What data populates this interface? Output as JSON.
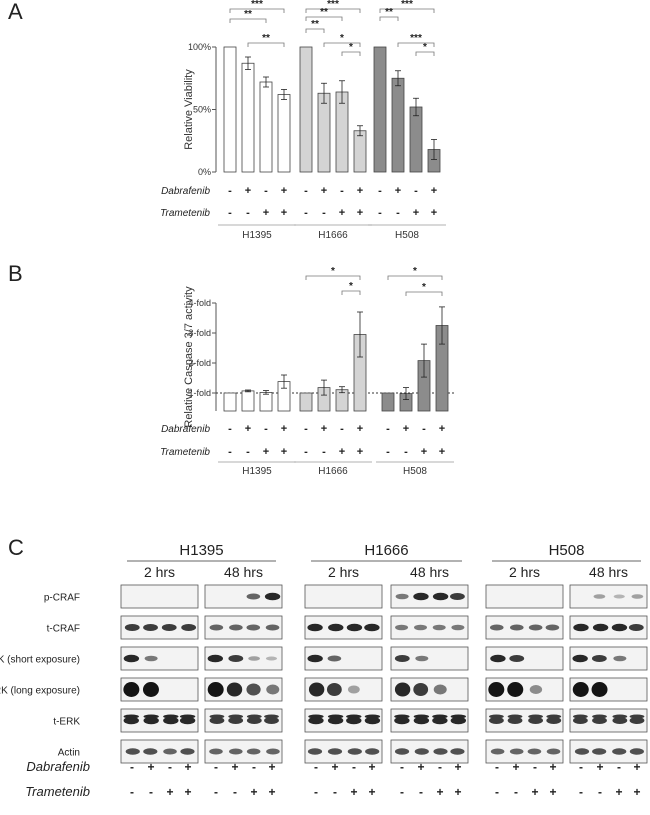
{
  "chart_data": [
    {
      "panel_label": "A",
      "type": "bar",
      "ylabel": "Relative Viability",
      "yticks": [
        "0%",
        "50%",
        "100%"
      ],
      "ylim": [
        0,
        100
      ],
      "row_labels": [
        "Dabrafenib",
        "Trametenib"
      ],
      "row_signs": [
        [
          "-",
          "+",
          "-",
          "+"
        ],
        [
          "-",
          "-",
          "+",
          "+"
        ]
      ],
      "groups": [
        {
          "name": "H1395",
          "color": "#ffffff",
          "values": [
            100,
            87,
            72,
            62
          ],
          "errors": [
            0,
            5,
            4,
            4
          ],
          "sig": [
            {
              "a": 0,
              "b": 3,
              "label": "***"
            },
            {
              "a": 0,
              "b": 2,
              "label": "**"
            },
            {
              "a": 1,
              "b": 3,
              "label": "**"
            }
          ]
        },
        {
          "name": "H1666",
          "color": "#d4d4d4",
          "values": [
            100,
            63,
            64,
            33
          ],
          "errors": [
            0,
            8,
            9,
            4
          ],
          "sig": [
            {
              "a": 0,
              "b": 3,
              "label": "***"
            },
            {
              "a": 0,
              "b": 2,
              "label": "**"
            },
            {
              "a": 0,
              "b": 1,
              "label": "**"
            },
            {
              "a": 1,
              "b": 3,
              "label": "*"
            },
            {
              "a": 2,
              "b": 3,
              "label": "*"
            }
          ]
        },
        {
          "name": "H508",
          "color": "#8c8c8c",
          "values": [
            100,
            75,
            52,
            18
          ],
          "errors": [
            0,
            6,
            7,
            8
          ],
          "sig": [
            {
              "a": 0,
              "b": 3,
              "label": "***"
            },
            {
              "a": 0,
              "b": 1,
              "label": "**"
            },
            {
              "a": 1,
              "b": 3,
              "label": "***"
            },
            {
              "a": 2,
              "b": 3,
              "label": "*"
            }
          ]
        }
      ]
    },
    {
      "panel_label": "B",
      "type": "bar",
      "ylabel": "Relative Caspase 3/7 activity",
      "yticks": [
        "1-fold",
        "2-fold",
        "3-fold",
        "4-fold"
      ],
      "ylim": [
        0.4,
        4
      ],
      "row_labels": [
        "Dabrafenib",
        "Trametenib"
      ],
      "row_signs": [
        [
          "-",
          "+",
          "-",
          "+"
        ],
        [
          "-",
          "-",
          "+",
          "+"
        ]
      ],
      "groups": [
        {
          "name": "H1395",
          "color": "#ffffff",
          "values": [
            1.0,
            1.07,
            1.02,
            1.38
          ],
          "errors": [
            0,
            0.03,
            0.06,
            0.22
          ],
          "sig": []
        },
        {
          "name": "H1666",
          "color": "#d4d4d4",
          "values": [
            1.0,
            1.18,
            1.11,
            2.95
          ],
          "errors": [
            0,
            0.25,
            0.1,
            0.75
          ],
          "sig": [
            {
              "a": 0,
              "b": 3,
              "label": "*"
            },
            {
              "a": 2,
              "b": 3,
              "label": "*"
            }
          ]
        },
        {
          "name": "H508",
          "color": "#8c8c8c",
          "values": [
            1.0,
            0.98,
            2.08,
            3.25
          ],
          "errors": [
            0,
            0.2,
            0.55,
            0.62
          ],
          "sig": [
            {
              "a": 0,
              "b": 3,
              "label": "*"
            },
            {
              "a": 1,
              "b": 3,
              "label": "*"
            }
          ]
        }
      ]
    }
  ],
  "blot_panel": {
    "panel_label": "C",
    "cell_lines": [
      {
        "name": "H1395",
        "timepoints": [
          "2 hrs",
          "48 hrs"
        ]
      },
      {
        "name": "H1666",
        "timepoints": [
          "2 hrs",
          "48 hrs"
        ]
      },
      {
        "name": "H508",
        "timepoints": [
          "2 hrs",
          "48 hrs"
        ]
      }
    ],
    "rows": [
      "p-CRAF",
      "t-CRAF",
      "p-ERK (short exposure)",
      "p-ERK (long exposure)",
      "t-ERK",
      "Actin"
    ],
    "treatment_rows": [
      {
        "label": "Dabrafenib",
        "signs": [
          "-",
          "+",
          "-",
          "+"
        ]
      },
      {
        "label": "Trametenib",
        "signs": [
          "-",
          "-",
          "+",
          "+"
        ]
      }
    ]
  }
}
